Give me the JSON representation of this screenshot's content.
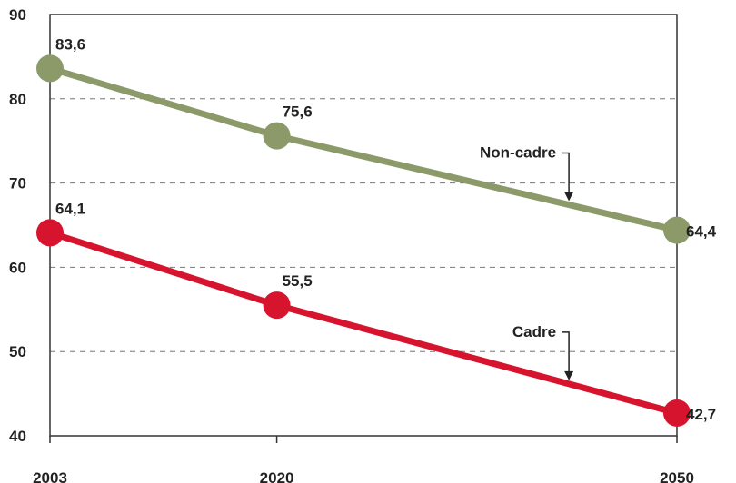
{
  "chart_data": {
    "type": "line",
    "title": "",
    "xlabel": "",
    "ylabel": "",
    "x": [
      2003,
      2020,
      2050
    ],
    "categories": [
      "2003",
      "2020",
      "2050"
    ],
    "ylim": [
      40,
      90
    ],
    "yticks": [
      40,
      50,
      60,
      70,
      80,
      90
    ],
    "grid": "horizontal dashed",
    "series": [
      {
        "name": "Non-cadre",
        "color": "#8c9a6a",
        "values": [
          83.6,
          75.6,
          64.4
        ],
        "labels": [
          "83,6",
          "75,6",
          "64,4"
        ]
      },
      {
        "name": "Cadre",
        "color": "#d7142e",
        "values": [
          64.1,
          55.5,
          42.7
        ],
        "labels": [
          "64,1",
          "55,5",
          "42,7"
        ]
      }
    ]
  }
}
